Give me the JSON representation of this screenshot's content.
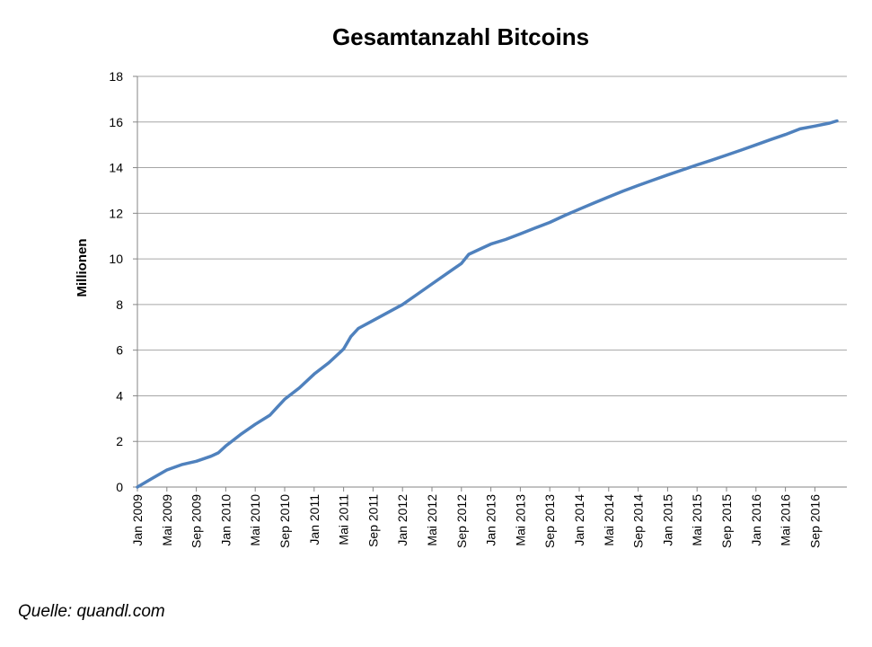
{
  "source_note": "Quelle: quandl.com",
  "colors": {
    "series": "#4f81bd",
    "grid": "#a6a6a6",
    "axis": "#868686"
  },
  "chart_data": {
    "type": "line",
    "title": "Gesamtanzahl Bitcoins",
    "xlabel": "",
    "ylabel": "Millionen",
    "ylim": [
      0,
      18
    ],
    "y_ticks": [
      "0",
      "2",
      "4",
      "6",
      "8",
      "10",
      "12",
      "14",
      "16",
      "18"
    ],
    "grid": true,
    "legend": "none",
    "x_ticks": [
      "Jan 2009",
      "Mai 2009",
      "Sep 2009",
      "Jan 2010",
      "Mai 2010",
      "Sep 2010",
      "Jan 2011",
      "Mai 2011",
      "Sep 2011",
      "Jan 2012",
      "Mai 2012",
      "Sep 2012",
      "Jan 2013",
      "Mai 2013",
      "Sep 2013",
      "Jan 2014",
      "Mai 2014",
      "Sep 2014",
      "Jan 2015",
      "Mai 2015",
      "Sep 2015",
      "Jan 2016",
      "Mai 2016",
      "Sep 2016"
    ],
    "series": [
      {
        "values": [
          [
            "Jan 2009",
            0.0
          ],
          [
            "Mrz 2009",
            0.38
          ],
          [
            "Mai 2009",
            0.75
          ],
          [
            "Jul 2009",
            0.98
          ],
          [
            "Sep 2009",
            1.13
          ],
          [
            "Nov 2009",
            1.35
          ],
          [
            "Dez 2009",
            1.5
          ],
          [
            "Jan 2010",
            1.8
          ],
          [
            "Mrz 2010",
            2.3
          ],
          [
            "Mai 2010",
            2.75
          ],
          [
            "Jul 2010",
            3.15
          ],
          [
            "Aug 2010",
            3.5
          ],
          [
            "Sep 2010",
            3.85
          ],
          [
            "Nov 2010",
            4.35
          ],
          [
            "Jan 2011",
            4.95
          ],
          [
            "Mrz 2011",
            5.45
          ],
          [
            "Mai 2011",
            6.05
          ],
          [
            "Jun 2011",
            6.6
          ],
          [
            "Jul 2011",
            6.95
          ],
          [
            "Sep 2011",
            7.3
          ],
          [
            "Nov 2011",
            7.65
          ],
          [
            "Jan 2012",
            8.0
          ],
          [
            "Mrz 2012",
            8.45
          ],
          [
            "Mai 2012",
            8.9
          ],
          [
            "Jul 2012",
            9.35
          ],
          [
            "Sep 2012",
            9.8
          ],
          [
            "Okt 2012",
            10.2
          ],
          [
            "Dez 2012",
            10.5
          ],
          [
            "Jan 2013",
            10.65
          ],
          [
            "Mrz 2013",
            10.85
          ],
          [
            "Mai 2013",
            11.1
          ],
          [
            "Jul 2013",
            11.35
          ],
          [
            "Sep 2013",
            11.6
          ],
          [
            "Nov 2013",
            11.9
          ],
          [
            "Jan 2014",
            12.18
          ],
          [
            "Mrz 2014",
            12.45
          ],
          [
            "Mai 2014",
            12.72
          ],
          [
            "Jul 2014",
            12.98
          ],
          [
            "Sep 2014",
            13.22
          ],
          [
            "Nov 2014",
            13.45
          ],
          [
            "Jan 2015",
            13.68
          ],
          [
            "Mrz 2015",
            13.9
          ],
          [
            "Mai 2015",
            14.12
          ],
          [
            "Jul 2015",
            14.33
          ],
          [
            "Sep 2015",
            14.55
          ],
          [
            "Nov 2015",
            14.77
          ],
          [
            "Jan 2016",
            15.0
          ],
          [
            "Mrz 2016",
            15.23
          ],
          [
            "Mai 2016",
            15.45
          ],
          [
            "Jul 2016",
            15.7
          ],
          [
            "Sep 2016",
            15.82
          ],
          [
            "Nov 2016",
            15.95
          ],
          [
            "Dez 2016",
            16.05
          ]
        ]
      }
    ]
  }
}
